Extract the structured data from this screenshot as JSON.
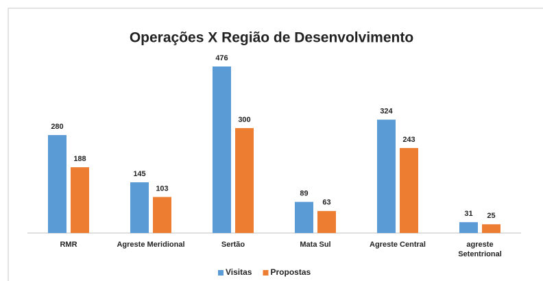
{
  "chart_data": {
    "type": "bar",
    "title": "Operações X Região de Desenvolvimento",
    "categories": [
      "RMR",
      "Agreste Meridional",
      "Sertão",
      "Mata Sul",
      "Agreste Central",
      "agreste Setentrional"
    ],
    "series": [
      {
        "name": "Visitas",
        "color": "#5b9bd5",
        "values": [
          280,
          145,
          476,
          89,
          324,
          31
        ]
      },
      {
        "name": "Propostas",
        "color": "#ed7d31",
        "values": [
          188,
          103,
          300,
          63,
          243,
          25
        ]
      }
    ],
    "legend": "bottom"
  }
}
